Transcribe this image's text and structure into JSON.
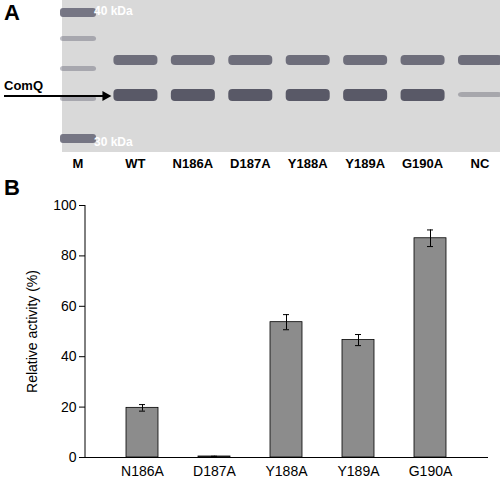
{
  "gel": {
    "panel_label": "A",
    "markers": [
      {
        "label": "40 kDa"
      },
      {
        "label": "30 kDa"
      }
    ],
    "band_label": "ComQ",
    "lanes": [
      "M",
      "WT",
      "N186A",
      "D187A",
      "Y188A",
      "Y189A",
      "G190A",
      "NC"
    ]
  },
  "chart_data": {
    "type": "bar",
    "panel_label": "B",
    "y_label": "Relative activity (%)",
    "categories": [
      "N186A",
      "D187A",
      "Y188A",
      "Y189A",
      "G190A"
    ],
    "values": [
      19.7,
      0.4,
      53.7,
      46.6,
      87.0
    ],
    "errors": [
      1.3,
      0.1,
      3.0,
      2.2,
      3.3
    ],
    "color": "#8c8c8c",
    "ylim": [
      0,
      100
    ],
    "yticks": [
      0,
      20,
      40,
      60,
      80,
      100
    ],
    "grid": false
  }
}
